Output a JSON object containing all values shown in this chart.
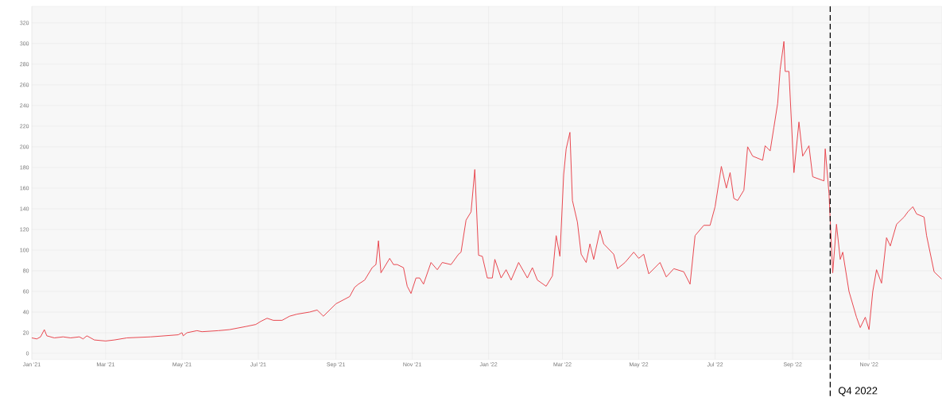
{
  "chart_data": {
    "type": "line",
    "x": [
      "2021-01-01",
      "2021-01-05",
      "2021-01-08",
      "2021-01-11",
      "2021-01-13",
      "2021-01-19",
      "2021-01-26",
      "2021-02-01",
      "2021-02-08",
      "2021-02-11",
      "2021-02-14",
      "2021-02-20",
      "2021-03-01",
      "2021-03-08",
      "2021-03-18",
      "2021-04-06",
      "2021-04-28",
      "2021-05-01",
      "2021-05-02",
      "2021-05-05",
      "2021-05-13",
      "2021-05-17",
      "2021-05-30",
      "2021-06-08",
      "2021-06-21",
      "2021-06-29",
      "2021-07-03",
      "2021-07-08",
      "2021-07-13",
      "2021-07-20",
      "2021-07-26",
      "2021-08-01",
      "2021-08-11",
      "2021-08-17",
      "2021-08-22",
      "2021-09-01",
      "2021-09-12",
      "2021-09-16",
      "2021-09-19",
      "2021-09-24",
      "2021-09-30",
      "2021-10-03",
      "2021-10-05",
      "2021-10-07",
      "2021-10-14",
      "2021-10-17",
      "2021-10-20",
      "2021-10-25",
      "2021-10-28",
      "2021-10-31",
      "2021-11-04",
      "2021-11-07",
      "2021-11-10",
      "2021-11-16",
      "2021-11-21",
      "2021-11-25",
      "2021-12-02",
      "2021-12-08",
      "2021-12-10",
      "2021-12-14",
      "2021-12-18",
      "2021-12-21",
      "2021-12-24",
      "2021-12-27",
      "2021-12-31",
      "2022-01-04",
      "2022-01-06",
      "2022-01-11",
      "2022-01-15",
      "2022-01-19",
      "2022-01-25",
      "2022-02-01",
      "2022-02-05",
      "2022-02-09",
      "2022-02-16",
      "2022-02-21",
      "2022-02-24",
      "2022-02-27",
      "2022-03-02",
      "2022-03-04",
      "2022-03-07",
      "2022-03-09",
      "2022-03-13",
      "2022-03-16",
      "2022-03-20",
      "2022-03-23",
      "2022-03-26",
      "2022-03-31",
      "2022-04-03",
      "2022-04-11",
      "2022-04-14",
      "2022-04-20",
      "2022-04-27",
      "2022-05-01",
      "2022-05-05",
      "2022-05-09",
      "2022-05-18",
      "2022-05-23",
      "2022-05-29",
      "2022-06-06",
      "2022-06-11",
      "2022-06-15",
      "2022-06-22",
      "2022-06-27",
      "2022-07-01",
      "2022-07-06",
      "2022-07-10",
      "2022-07-13",
      "2022-07-16",
      "2022-07-19",
      "2022-07-24",
      "2022-07-27",
      "2022-07-31",
      "2022-08-08",
      "2022-08-10",
      "2022-08-14",
      "2022-08-17",
      "2022-08-20",
      "2022-08-22",
      "2022-08-25",
      "2022-08-26",
      "2022-08-29",
      "2022-09-02",
      "2022-09-06",
      "2022-09-09",
      "2022-09-14",
      "2022-09-17",
      "2022-09-26",
      "2022-09-27",
      "2022-09-30",
      "2022-10-03",
      "2022-10-06",
      "2022-10-09",
      "2022-10-11",
      "2022-10-16",
      "2022-10-22",
      "2022-10-25",
      "2022-10-29",
      "2022-11-01",
      "2022-11-04",
      "2022-11-07",
      "2022-11-11",
      "2022-11-15",
      "2022-11-18",
      "2022-11-23",
      "2022-11-29",
      "2022-12-02",
      "2022-12-06",
      "2022-12-09",
      "2022-12-15",
      "2022-12-17",
      "2022-12-23",
      "2022-12-29"
    ],
    "series": [
      {
        "color": "#e8474f",
        "values": [
          15,
          14,
          16,
          23,
          17,
          15,
          16,
          15,
          16,
          14,
          17,
          13,
          12,
          13,
          15,
          16,
          18,
          20,
          17,
          20,
          22,
          21,
          22,
          23,
          26,
          28,
          31,
          34,
          32,
          32,
          36,
          38,
          40,
          42,
          36,
          48,
          55,
          64,
          67,
          71,
          83,
          86,
          109,
          78,
          92,
          86,
          86,
          83,
          65,
          58,
          73,
          73,
          67,
          88,
          81,
          88,
          86,
          96,
          98,
          129,
          137,
          178,
          95,
          94,
          73,
          73,
          91,
          73,
          81,
          71,
          88,
          73,
          83,
          71,
          65,
          75,
          114,
          94,
          173,
          198,
          214,
          148,
          127,
          96,
          88,
          106,
          91,
          119,
          106,
          96,
          82,
          88,
          98,
          92,
          96,
          77,
          88,
          74,
          82,
          79,
          67,
          114,
          124,
          124,
          142,
          181,
          160,
          175,
          150,
          148,
          158,
          200,
          191,
          187,
          201,
          196,
          219,
          242,
          275,
          302,
          273,
          273,
          175,
          224,
          191,
          201,
          171,
          167,
          198,
          155,
          78,
          125,
          91,
          98,
          60,
          35,
          25,
          35,
          23,
          60,
          81,
          68,
          112,
          104,
          125,
          132,
          137,
          142,
          135,
          132,
          114,
          79,
          72
        ]
      }
    ],
    "xlim": [
      "2021-01-01",
      "2022-12-29"
    ],
    "xticks": [
      {
        "value": "2021-01-01",
        "label": "Jan '21"
      },
      {
        "value": "2021-03-01",
        "label": "Mar '21"
      },
      {
        "value": "2021-05-01",
        "label": "May '21"
      },
      {
        "value": "2021-07-01",
        "label": "Jul '21"
      },
      {
        "value": "2021-09-01",
        "label": "Sep '21"
      },
      {
        "value": "2021-11-01",
        "label": "Nov '21"
      },
      {
        "value": "2022-01-01",
        "label": "Jan '22"
      },
      {
        "value": "2022-03-01",
        "label": "Mar '22"
      },
      {
        "value": "2022-05-01",
        "label": "May '22"
      },
      {
        "value": "2022-07-01",
        "label": "Jul '22"
      },
      {
        "value": "2022-09-01",
        "label": "Sep '22"
      },
      {
        "value": "2022-11-01",
        "label": "Nov '22"
      }
    ],
    "ylim": [
      -6,
      336
    ],
    "yticks": [
      0,
      20,
      40,
      60,
      80,
      100,
      120,
      140,
      160,
      180,
      200,
      220,
      240,
      260,
      280,
      300,
      320
    ],
    "grid": true,
    "marker": "none",
    "line_style": "solid",
    "ref_lines": [
      {
        "axis": "x",
        "value": "2022-10-01",
        "label": "Q4 2022",
        "color": "#000000",
        "line_style": "dashed"
      }
    ]
  }
}
